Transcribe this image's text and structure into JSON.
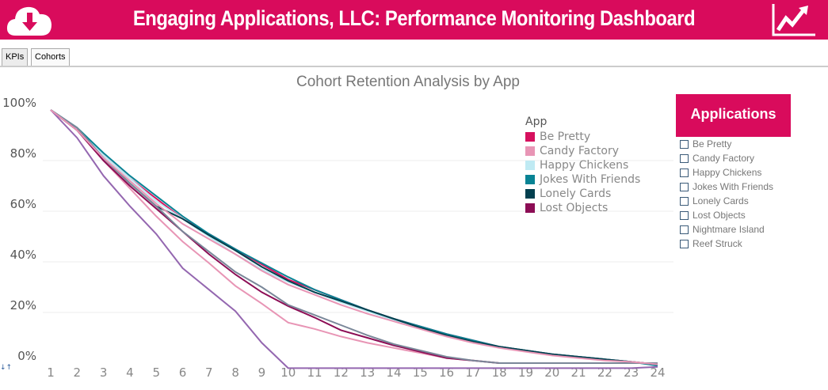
{
  "header": {
    "title": "Engaging Applications, LLC: Performance Monitoring Dashboard",
    "logo_icon": "cloud-download-icon",
    "right_icon": "trend-up-icon",
    "color": "#d90b5c"
  },
  "tabs": [
    {
      "label": "KPIs",
      "active": false
    },
    {
      "label": "Cohorts",
      "active": true
    }
  ],
  "applications_panel": {
    "title": "Applications",
    "items": [
      "Be Pretty",
      "Candy Factory",
      "Happy Chickens",
      "Jokes With Friends",
      "Lonely Cards",
      "Lost Objects",
      "Nightmare Island",
      "Reef Struck"
    ]
  },
  "sort_icon": "sort-icon",
  "chart_data": {
    "type": "line",
    "title": "Cohort Retention Analysis by App",
    "legend_title": "App",
    "legend_position": "top-right",
    "grid": true,
    "x": [
      1,
      2,
      3,
      4,
      5,
      6,
      7,
      8,
      9,
      10,
      11,
      12,
      13,
      14,
      15,
      16,
      17,
      18,
      19,
      20,
      21,
      22,
      23,
      24
    ],
    "xlim": [
      1,
      24
    ],
    "ylim": [
      0,
      100
    ],
    "yticks": [
      "0%",
      "20%",
      "40%",
      "60%",
      "80%",
      "100%"
    ],
    "series": [
      {
        "name": "Be Pretty",
        "color": "#d6105e",
        "legend": true,
        "values": [
          100,
          92,
          82,
          73,
          65,
          57,
          51,
          45,
          39,
          33,
          29,
          25,
          21,
          17.5,
          14.5,
          11.5,
          9,
          6.5,
          5,
          3.5,
          2.5,
          1.5,
          0.5,
          -0.5
        ]
      },
      {
        "name": "Candy Factory",
        "color": "#e895b5",
        "legend": true,
        "values": [
          100,
          92,
          80,
          69,
          58,
          48,
          39.5,
          30.5,
          23.5,
          16,
          13.5,
          10.5,
          8,
          6,
          4,
          2,
          1,
          0,
          0,
          0,
          0,
          0,
          0,
          0
        ]
      },
      {
        "name": "Happy Chickens",
        "color": "#bfeaf3",
        "legend": true,
        "values": [
          100,
          93,
          82,
          73,
          64,
          57,
          50,
          43,
          37,
          32,
          28,
          24,
          20.5,
          17,
          14,
          11,
          8.5,
          6.5,
          5,
          3.5,
          2.5,
          1.5,
          0.5,
          -1
        ]
      },
      {
        "name": "Jokes With Friends",
        "color": "#088394",
        "legend": true,
        "values": [
          100,
          93,
          83,
          74,
          66,
          58,
          51,
          45,
          39.5,
          34,
          29,
          25,
          21,
          17.5,
          14.5,
          11.5,
          9,
          6.5,
          5,
          3.5,
          2.5,
          1.5,
          0.5,
          -1
        ]
      },
      {
        "name": "Lonely Cards",
        "color": "#03404f",
        "legend": true,
        "values": [
          100,
          92,
          81,
          71,
          62,
          57,
          50.5,
          44.5,
          38,
          32.5,
          28,
          24.5,
          21,
          17.5,
          14,
          11,
          8.5,
          6.5,
          5,
          3.5,
          2.5,
          1.5,
          0.5,
          -0.5
        ]
      },
      {
        "name": "Lost Objects",
        "color": "#8c0d55",
        "legend": true,
        "values": [
          100,
          92,
          80,
          70,
          61,
          52,
          43,
          35,
          28,
          22.5,
          18,
          13,
          10,
          7,
          4.5,
          2,
          1,
          0,
          0,
          0,
          0,
          0,
          0,
          0
        ]
      },
      {
        "color": "#7a8799",
        "legend": false,
        "values": [
          100,
          93,
          81,
          71,
          62,
          52,
          44,
          36,
          30,
          23,
          19,
          15,
          11,
          7.5,
          5,
          2.5,
          1,
          0,
          0,
          0,
          0,
          0,
          0,
          0
        ]
      },
      {
        "color": "#9467b0",
        "legend": false,
        "values": [
          100,
          89,
          74,
          62,
          51,
          37.5,
          29,
          20.5,
          8,
          -2,
          -2,
          -2,
          -2,
          -2,
          -2,
          -2,
          -2,
          -2,
          -2,
          -2,
          -2,
          -2,
          -2,
          -1.5
        ]
      },
      {
        "color": "#e895b5",
        "legend": false,
        "values": [
          100,
          92,
          81,
          72,
          63,
          55,
          49,
          43,
          36.5,
          31,
          27,
          23,
          19.5,
          16.5,
          13.5,
          10.5,
          8,
          6,
          4.5,
          3,
          2,
          1,
          0.5,
          -0.5
        ]
      }
    ]
  }
}
